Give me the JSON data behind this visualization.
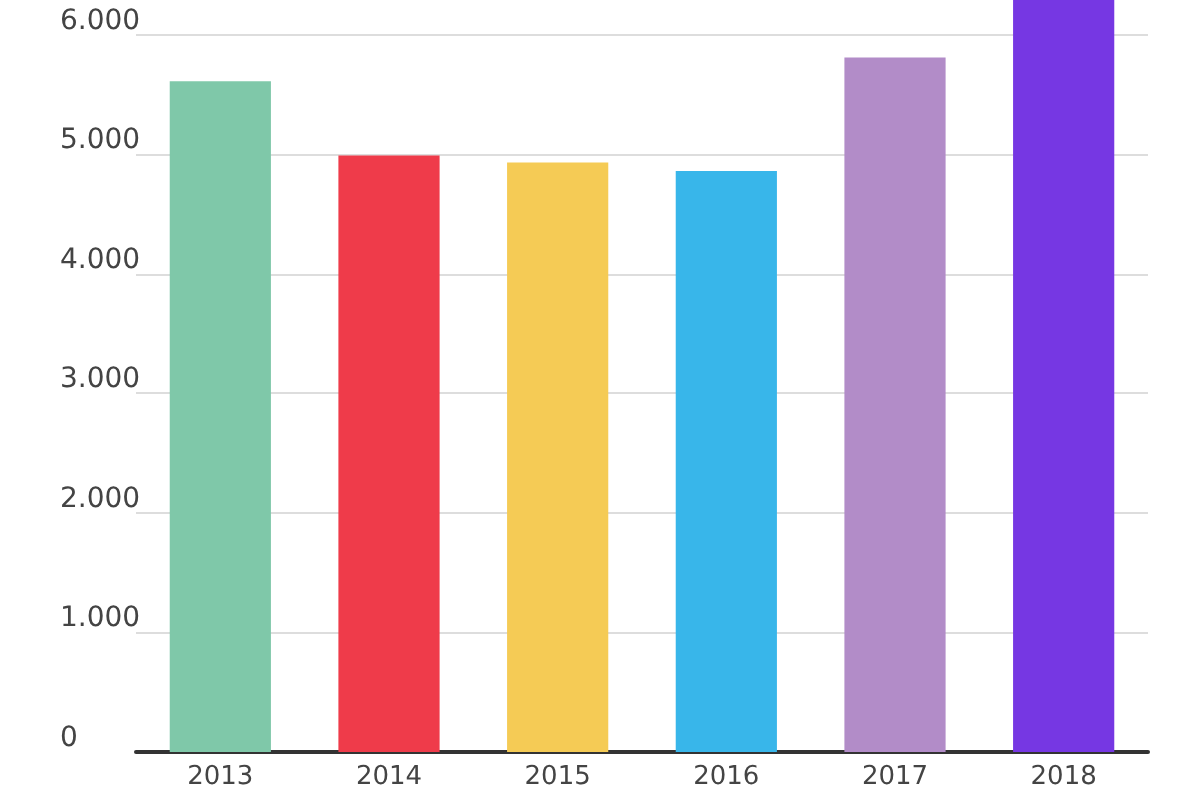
{
  "chart_data": {
    "type": "bar",
    "categories": [
      "2013",
      "2014",
      "2015",
      "2016",
      "2017",
      "2018"
    ],
    "values": [
      5610,
      4990,
      4930,
      4860,
      5810,
      6290
    ],
    "colors": [
      "#7fc8a9",
      "#ef3b4a",
      "#f5cb55",
      "#38b6ea",
      "#b28cc8",
      "#7637e3"
    ],
    "ylim": [
      0,
      6290
    ],
    "yticks": [
      0,
      {
        "value": 1000,
        "label": "1.000"
      },
      {
        "value": 2000,
        "label": "2.000"
      },
      {
        "value": 3000,
        "label": "3.000"
      },
      {
        "value": 4000,
        "label": "4.000"
      },
      {
        "value": 5000,
        "label": "5.000"
      },
      {
        "value": 6000,
        "label": "6.000"
      }
    ],
    "grid": "y"
  }
}
